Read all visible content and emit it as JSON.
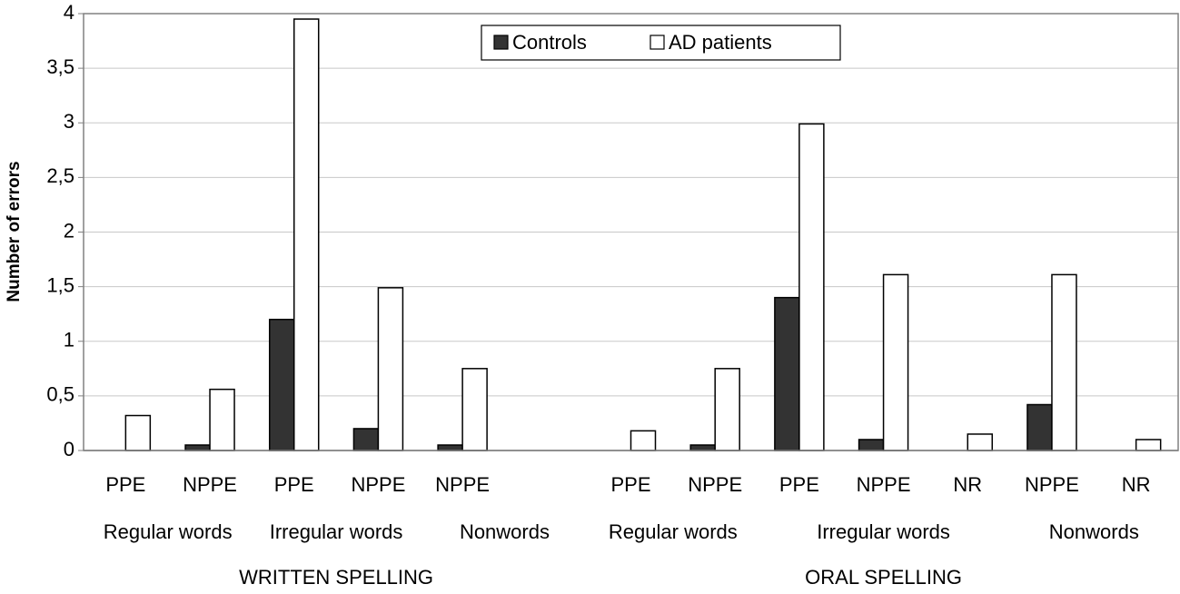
{
  "chart_data": {
    "type": "bar",
    "y_label": "Number of errors",
    "categories": [
      "PPE",
      "NPPE",
      "PPE",
      "NPPE",
      "NPPE",
      null,
      "PPE",
      "NPPE",
      "PPE",
      "NPPE",
      "NR",
      "NPPE",
      "NR"
    ],
    "category_groups": [
      [
        "Regular words",
        "Regular words",
        "Irregular words",
        "Irregular words",
        "Nonwords",
        "Nonwords",
        "Regular words",
        "Regular words",
        "Irregular words",
        "Irregular words",
        "Irregular words",
        "Nonwords",
        "Nonwords"
      ],
      [
        "WRITTEN SPELLING",
        "WRITTEN SPELLING",
        "WRITTEN SPELLING",
        "WRITTEN SPELLING",
        "WRITTEN SPELLING",
        "WRITTEN SPELLING",
        "ORAL SPELLING",
        "ORAL SPELLING",
        "ORAL SPELLING",
        "ORAL SPELLING",
        "ORAL SPELLING",
        "ORAL SPELLING",
        "ORAL SPELLING"
      ]
    ],
    "series": [
      {
        "name": "Controls",
        "color": "#333333",
        "values": [
          0,
          0.05,
          1.2,
          0.2,
          0.05,
          null,
          0,
          0.05,
          1.4,
          0.1,
          0,
          0.42,
          0
        ]
      },
      {
        "name": "AD patients",
        "color": "#ffffff",
        "values": [
          0.32,
          0.56,
          3.95,
          1.49,
          0.75,
          null,
          0.18,
          0.75,
          2.99,
          1.61,
          0.15,
          1.61,
          0.1
        ]
      }
    ],
    "ylim": [
      0,
      4
    ],
    "yticks": [
      0,
      {
        "value": 0.5,
        "label": "0,5"
      },
      1,
      {
        "value": 1.5,
        "label": "1,5"
      },
      2,
      {
        "value": 2.5,
        "label": "2,5"
      },
      3,
      {
        "value": 3.5,
        "label": "3,5"
      },
      4
    ],
    "grid": true,
    "legend": "top"
  }
}
